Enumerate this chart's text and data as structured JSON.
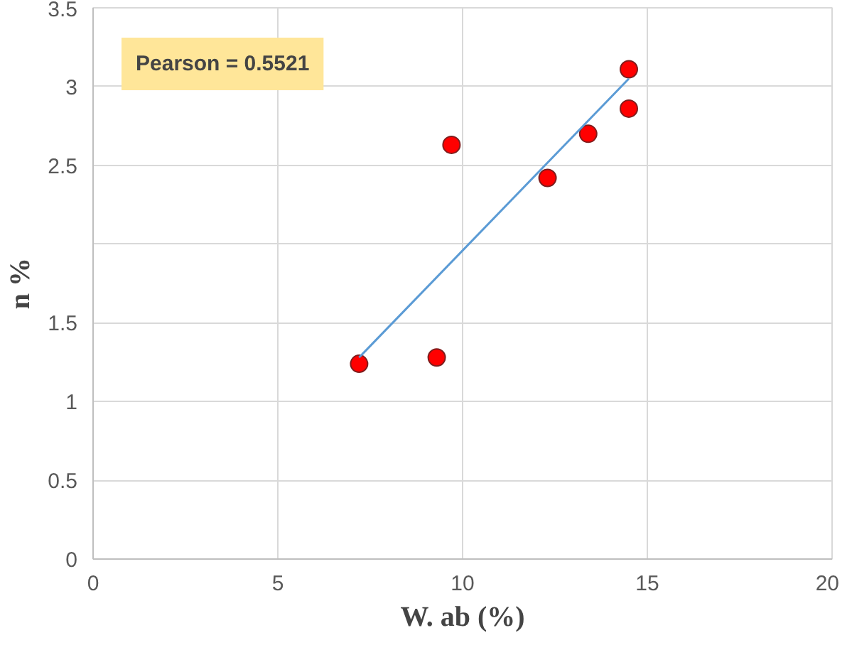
{
  "chart_data": {
    "type": "scatter",
    "xlabel": "W. ab (%)",
    "ylabel": "n %",
    "xlim": [
      0,
      20
    ],
    "xticks": [
      0,
      5,
      10,
      15,
      20
    ],
    "ylim": [
      0,
      3.5
    ],
    "yticks": [
      0,
      0.5,
      1,
      1.5,
      {
        "value": 2,
        "label": null
      },
      2.5,
      3,
      3.5
    ],
    "grid": true,
    "marker": "circle",
    "annotations": [
      "Pearson = 0.5521"
    ],
    "series": [
      {
        "color": "#ff0000",
        "x": [
          7.2,
          9.3,
          9.7,
          12.3,
          13.4,
          14.5,
          14.5
        ],
        "values": [
          1.24,
          1.28,
          2.63,
          2.42,
          2.7,
          3.11,
          2.86
        ]
      },
      {
        "type": "line",
        "color": "#5b9bd5",
        "x": [
          7.2,
          14.5
        ],
        "values": [
          1.28,
          3.05
        ],
        "marker": "none"
      }
    ]
  }
}
